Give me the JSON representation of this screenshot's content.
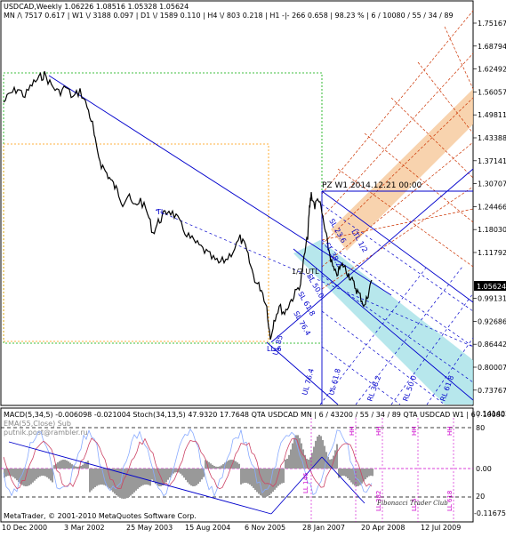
{
  "header": {
    "line1": "USDCAD,Weekly  1.06226 1.08516 1.05328 1.05624",
    "line2": "MN /\\ 7517  0.617 | W1 \\/ 3188  0.097 | D1 \\/ 1589  0.110 | H4 \\/ 803  0.218 | H1 -|- 266  0.658 | 98.23 % | 6 / 10080 / 55 / 34 / 89"
  },
  "price_axis": {
    "labels": [
      "1.75167",
      "1.68794",
      "1.62492",
      "1.56057",
      "1.49811",
      "1.43388",
      "1.37141",
      "1.30707",
      "1.24466",
      "1.18030",
      "1.11792",
      "1.05624",
      "0.99131",
      "0.92686",
      "0.86442",
      "0.80007",
      "0.73767"
    ],
    "current": "1.05624"
  },
  "main_annotations": {
    "pz_label": "PZ W1   2014.12.21 00:00",
    "half_label": "1/2 UTL",
    "tl_label": "TL",
    "ll_label": "LL 6",
    "rl_labels": [
      "RL 61.8",
      "RL 50.0",
      "RL 38.2"
    ],
    "sl_labels": [
      "SL 23.6",
      "SL 38.2",
      "SL 50.0",
      "SL 61.8",
      "LTL 1/2",
      "SL 76.4"
    ],
    "ul_labels": [
      "UL 85",
      "UL 76.4",
      "UL 61.8"
    ]
  },
  "indicator": {
    "header": "MACD(5,34,5) -0.006098 -0.021004  Stoch(34,13,5) 47.9320 17.7648   QTA USDCAD MN | 6 / 43200 / 55 / 34 / 89  QTA USDCAD W1 | 6 / 10080 / 55 / 34 / 89",
    "sub1": "EMA(55,Close) Sub",
    "sub2": "putnik.post@rambler.ru",
    "axis": [
      "0.141402",
      "80",
      "0.00",
      "20",
      "-0.11675"
    ],
    "ll_labels": [
      "LL 146",
      "LL 382",
      "LL 5",
      "LL 618"
    ],
    "hh_labels": [
      "HH",
      "HH",
      "HH",
      "HH"
    ],
    "watermark": "Fibonacci Trader Club",
    "copyright": "MetaTrader, © 2001-2010 MetaQuotes Software Corp."
  },
  "time_axis": [
    "10 Dec 2000",
    "3 Mar 2002",
    "25 May 2003",
    "15 Aug 2004",
    "6 Nov 2005",
    "28 Jan 2007",
    "20 Apr 2008",
    "12 Jul 2009"
  ],
  "colors": {
    "price_line": "#000000",
    "trend_blue": "#0000cc",
    "channel_cyan": "#9fdfe6",
    "channel_orange": "#f6c89a",
    "fib_red": "#cc3300",
    "grid_green": "#00aa00",
    "grid_orange": "#ff9900",
    "macd_hist": "#999999",
    "stoch_light": "#88aaff",
    "magenta": "#cc00cc"
  }
}
